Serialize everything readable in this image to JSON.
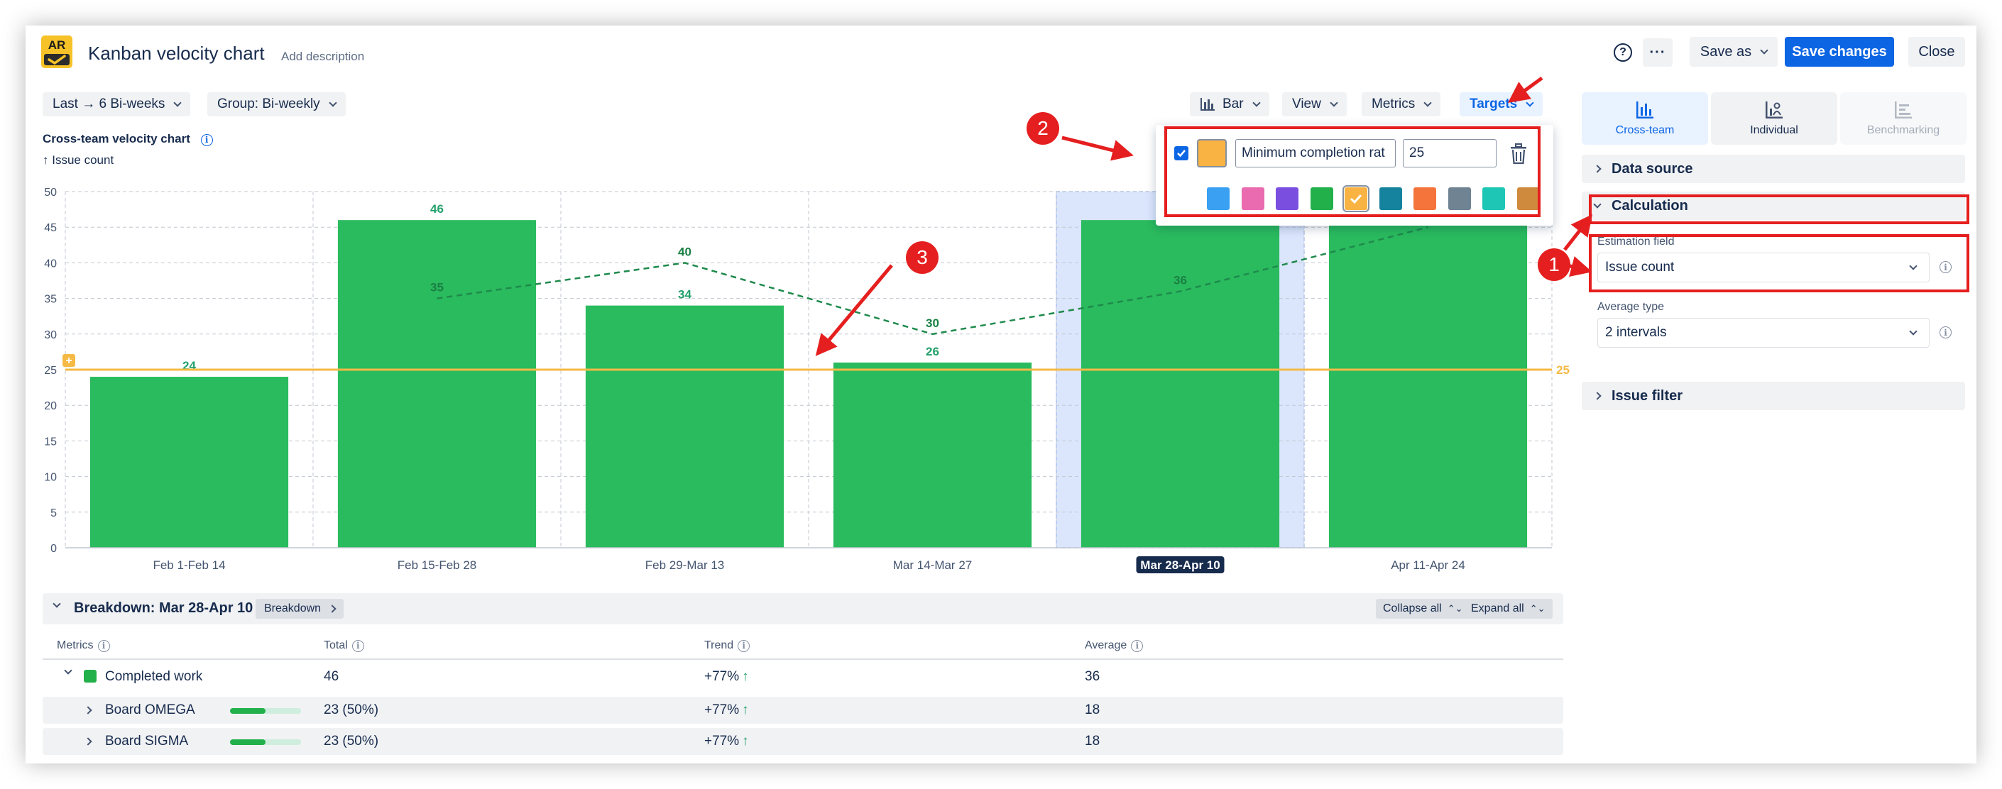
{
  "header": {
    "logo_text": "AR",
    "title": "Kanban velocity chart",
    "add_description": "Add description",
    "help_glyph": "?",
    "more_glyph": "···",
    "save_as": "Save as",
    "save_changes": "Save changes",
    "close": "Close"
  },
  "toolbar": {
    "range": "Last → 6 Bi-weeks",
    "group": "Group: Bi-weekly",
    "chart_type": "Bar",
    "view": "View",
    "metrics": "Metrics",
    "targets": "Targets"
  },
  "chart_header": {
    "title": "Cross-team velocity chart",
    "info_glyph": "i",
    "y_label": "↑ Issue count"
  },
  "chart_data": {
    "type": "bar",
    "title": "Cross-team velocity chart",
    "ylabel": "↑ Issue count",
    "xlabel": "",
    "ylim": [
      0,
      50
    ],
    "yticks": [
      0,
      5,
      10,
      15,
      20,
      25,
      30,
      35,
      40,
      45,
      50
    ],
    "categories": [
      "Feb 1-Feb 14",
      "Feb 15-Feb 28",
      "Feb 29-Mar 13",
      "Mar 14-Mar 27",
      "Mar 28-Apr 10",
      "Apr 11-Apr 24"
    ],
    "selected_category": "Mar 28-Apr 10",
    "grid": true,
    "series": [
      {
        "values": [
          24,
          46,
          34,
          26,
          46,
          46
        ],
        "color": "#2abb5e",
        "labels": [
          "24",
          "46",
          "34",
          "26",
          "",
          ""
        ]
      },
      {
        "type": "line",
        "style": "dashed",
        "color": "#1f8a4c",
        "values": [
          null,
          35,
          40,
          30,
          36,
          45
        ],
        "labels": [
          "",
          "35",
          "40",
          "30",
          "36",
          ""
        ]
      }
    ],
    "target_line": {
      "value": 25,
      "color": "#f5b945",
      "label": "25",
      "marker": "+"
    }
  },
  "targets_popover": {
    "checked": true,
    "name": "Minimum completion rat",
    "value": "25",
    "selected_color": "#f8b342",
    "palette": [
      "#3aa0f2",
      "#ea6bb0",
      "#7a4fe0",
      "#22b04b",
      "#f8b342",
      "#15839e",
      "#f5743b",
      "#6f8392",
      "#1ec7b5",
      "#cf8a3e"
    ]
  },
  "annotations": {
    "one": "1",
    "two": "2",
    "three": "3"
  },
  "right_panel": {
    "tabs": [
      {
        "label": "Cross-team",
        "icon": "bar-chart-icon",
        "active": true
      },
      {
        "label": "Individual",
        "icon": "person-chart-icon",
        "active": false
      },
      {
        "label": "Benchmarking",
        "icon": "benchmark-icon",
        "active": false
      }
    ],
    "data_source": "Data source",
    "calculation": "Calculation",
    "estimation_field_label": "Estimation field",
    "estimation_field_value": "Issue count",
    "average_type_label": "Average type",
    "average_type_value": "2 intervals",
    "issue_filter": "Issue filter"
  },
  "breakdown": {
    "title": "Breakdown: Mar 28-Apr 10",
    "button": "Breakdown",
    "collapse_all": "Collapse all",
    "expand_all": "Expand all",
    "columns": [
      "Metrics",
      "Total",
      "Trend",
      "Average"
    ],
    "rows": [
      {
        "name": "Completed work",
        "total": "46",
        "trend": "+77%",
        "average": "36",
        "color": "#22b04b"
      },
      {
        "name": "Board OMEGA",
        "total": "23 (50%)",
        "trend": "+77%",
        "average": "18",
        "progress": 0.5
      },
      {
        "name": "Board SIGMA",
        "total": "23 (50%)",
        "trend": "+77%",
        "average": "18",
        "progress": 0.5
      }
    ]
  }
}
